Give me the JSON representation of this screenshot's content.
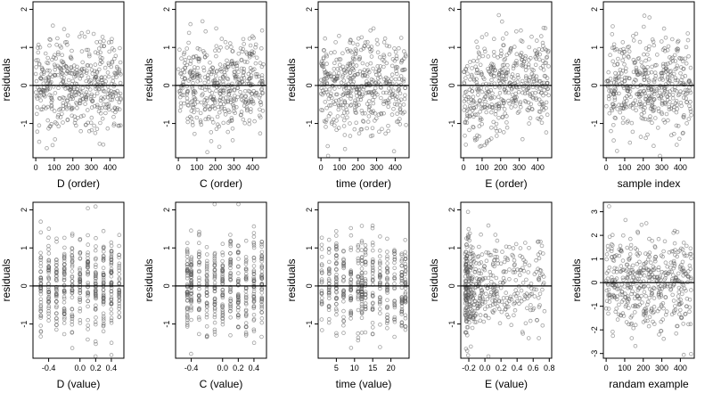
{
  "chart_data": [
    {
      "type": "scatter",
      "xlabel": "D (order)",
      "ylabel": "residuals",
      "xlim": [
        -15,
        475
      ],
      "ylim": [
        -1.9,
        2.2
      ],
      "xticks": [
        0,
        100,
        200,
        300,
        400
      ],
      "yticks": [
        -1,
        0,
        1,
        2
      ],
      "reference_line_y": 0,
      "pattern": "order",
      "n_points": 460,
      "series": []
    },
    {
      "type": "scatter",
      "xlabel": "C (order)",
      "ylabel": "residuals",
      "xlim": [
        -15,
        475
      ],
      "ylim": [
        -1.9,
        2.2
      ],
      "xticks": [
        0,
        100,
        200,
        300,
        400
      ],
      "yticks": [
        -1,
        0,
        1,
        2
      ],
      "reference_line_y": 0,
      "pattern": "order",
      "n_points": 460,
      "series": []
    },
    {
      "type": "scatter",
      "xlabel": "time (order)",
      "ylabel": "residuals",
      "xlim": [
        -15,
        475
      ],
      "ylim": [
        -1.9,
        2.2
      ],
      "xticks": [
        0,
        100,
        200,
        300,
        400
      ],
      "yticks": [
        -1,
        0,
        1,
        2
      ],
      "reference_line_y": 0,
      "pattern": "order",
      "n_points": 460,
      "series": []
    },
    {
      "type": "scatter",
      "xlabel": "E (order)",
      "ylabel": "residuals",
      "xlim": [
        -15,
        475
      ],
      "ylim": [
        -1.9,
        2.2
      ],
      "xticks": [
        0,
        100,
        200,
        300,
        400
      ],
      "yticks": [
        -1,
        0,
        1,
        2
      ],
      "reference_line_y": 0,
      "pattern": "order-trend",
      "n_points": 460,
      "series": []
    },
    {
      "type": "scatter",
      "xlabel": "sample index",
      "ylabel": "residuals",
      "xlim": [
        -15,
        475
      ],
      "ylim": [
        -1.9,
        2.2
      ],
      "xticks": [
        0,
        100,
        200,
        300,
        400
      ],
      "yticks": [
        -1,
        0,
        1,
        2
      ],
      "reference_line_y": 0,
      "pattern": "order",
      "n_points": 460,
      "series": []
    },
    {
      "type": "scatter",
      "xlabel": "D (value)",
      "ylabel": "residuals",
      "xlim": [
        -0.6,
        0.56
      ],
      "ylim": [
        -1.9,
        2.2
      ],
      "xticks": [
        -0.4,
        0.0,
        0.2,
        0.4
      ],
      "xticklabels": [
        "-0.4",
        "0.0",
        "0.2",
        "0.4"
      ],
      "yticks": [
        -1,
        0,
        1,
        2
      ],
      "reference_line_y": 0,
      "pattern": "columns",
      "value_columns": [
        -0.5,
        -0.4,
        -0.3,
        -0.2,
        -0.1,
        0.0,
        0.1,
        0.2,
        0.3,
        0.4,
        0.5
      ],
      "n_points": 460,
      "series": []
    },
    {
      "type": "scatter",
      "xlabel": "C (value)",
      "ylabel": "residuals",
      "xlim": [
        -0.6,
        0.56
      ],
      "ylim": [
        -1.9,
        2.2
      ],
      "xticks": [
        -0.4,
        0.0,
        0.2,
        0.4
      ],
      "xticklabels": [
        "-0.4",
        "0.0",
        "0.2",
        "0.4"
      ],
      "yticks": [
        -1,
        0,
        1,
        2
      ],
      "reference_line_y": 0,
      "pattern": "columns",
      "value_columns": [
        -0.45,
        -0.4,
        -0.3,
        -0.2,
        -0.1,
        0.0,
        0.1,
        0.2,
        0.3,
        0.4,
        0.5
      ],
      "n_points": 460,
      "series": []
    },
    {
      "type": "scatter",
      "xlabel": "time (value)",
      "ylabel": "residuals",
      "xlim": [
        0,
        25
      ],
      "ylim": [
        -1.9,
        2.2
      ],
      "xticks": [
        5,
        10,
        15,
        20
      ],
      "yticks": [
        -1,
        0,
        1,
        2
      ],
      "reference_line_y": 0,
      "pattern": "columns",
      "value_columns": [
        1,
        3,
        5,
        7,
        9,
        11,
        12,
        13,
        15,
        17,
        19,
        21,
        23,
        24
      ],
      "n_points": 460,
      "series": []
    },
    {
      "type": "scatter",
      "xlabel": "E (value)",
      "ylabel": "residuals",
      "xlim": [
        -0.3,
        0.83
      ],
      "ylim": [
        -1.9,
        2.2
      ],
      "xticks": [
        -0.2,
        0.0,
        0.2,
        0.4,
        0.6,
        0.8
      ],
      "xticklabels": [
        "-0.2",
        "0.0",
        "0.2",
        "0.4",
        "0.6",
        "0.8"
      ],
      "yticks": [
        -1,
        0,
        1,
        2
      ],
      "reference_line_y": 0,
      "pattern": "skewed",
      "n_points": 460,
      "series": []
    },
    {
      "type": "scatter",
      "xlabel": "randam example",
      "ylabel": "residuals",
      "xlim": [
        -15,
        475
      ],
      "ylim": [
        -3.2,
        3.4
      ],
      "xticks": [
        0,
        100,
        200,
        300,
        400
      ],
      "yticks": [
        -3,
        -2,
        -1,
        0,
        1,
        2,
        3
      ],
      "reference_line_y": 0,
      "pattern": "order",
      "n_points": 460,
      "series": []
    }
  ]
}
